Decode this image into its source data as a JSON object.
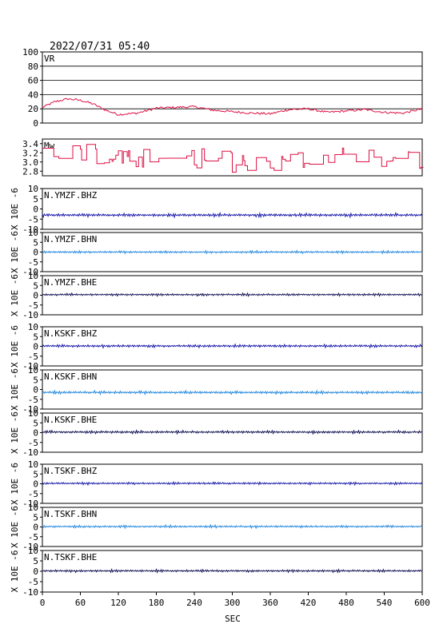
{
  "header": {
    "timestamp": "2022/07/31 05:40"
  },
  "chart_data": {
    "type": "line",
    "x_axis": {
      "label": "SEC",
      "range": [
        0,
        600
      ],
      "ticks": [
        0,
        60,
        120,
        180,
        240,
        300,
        360,
        420,
        480,
        540,
        600
      ]
    },
    "colors": {
      "frame": "#000000",
      "vr_trace": "#dd1144",
      "mw_trace": "#dd1144",
      "bhz": "#1a1aaa",
      "bhn": "#2288dd",
      "bhe": "#111155"
    },
    "panels": [
      {
        "name": "VR",
        "label": "VR",
        "ylim": [
          0,
          100
        ],
        "ticks": [
          "100",
          "80",
          "60",
          "40",
          "20",
          "0"
        ],
        "tick_values": [
          100,
          80,
          60,
          40,
          20,
          0
        ],
        "grid": true,
        "trace": "vr",
        "color": "#dd1144",
        "series": {
          "x": [
            0,
            20,
            40,
            60,
            80,
            100,
            120,
            150,
            180,
            210,
            240,
            270,
            300,
            330,
            360,
            390,
            420,
            450,
            480,
            510,
            540,
            570,
            600
          ],
          "y": [
            22,
            30,
            34,
            32,
            27,
            18,
            12,
            14,
            21,
            22,
            23,
            18,
            16,
            14,
            13,
            19,
            20,
            15,
            17,
            19,
            15,
            14,
            20
          ]
        }
      },
      {
        "name": "Mw",
        "label": "Mw",
        "ylim": [
          2.7,
          3.5
        ],
        "ticks": [
          "3.4",
          "3.2",
          "3.0",
          "2.8"
        ],
        "tick_values": [
          3.4,
          3.2,
          3.0,
          2.8
        ],
        "grid": false,
        "trace": "mw",
        "color": "#dd1144",
        "series": {
          "x": [
            0,
            60,
            120,
            180,
            240,
            300,
            360,
            420,
            480,
            540,
            600
          ],
          "y": [
            3.3,
            3.2,
            3.15,
            3.05,
            3.1,
            3.0,
            2.95,
            3.05,
            3.1,
            3.0,
            3.05
          ]
        }
      },
      {
        "name": "N.YMZF.BHZ",
        "label": "N.YMZF.BHZ",
        "ylim": [
          -10,
          10
        ],
        "ticks": [
          "10",
          "5",
          "0",
          "-5",
          "-10"
        ],
        "tick_values": [
          10,
          5,
          0,
          -5,
          -10
        ],
        "offset": -3,
        "amp": 0.7,
        "color": "#1a1aaa",
        "trace": "seis",
        "ylabel": "X 10E -6"
      },
      {
        "name": "N.YMZF.BHN",
        "label": "N.YMZF.BHN",
        "ylim": [
          -10,
          10
        ],
        "ticks": [
          "10",
          "5",
          "0",
          "-5",
          "-10"
        ],
        "tick_values": [
          10,
          5,
          0,
          -5,
          -10
        ],
        "offset": 0,
        "amp": 0.5,
        "color": "#2288dd",
        "trace": "seis",
        "ylabel": "X 10E -6"
      },
      {
        "name": "N.YMZF.BHE",
        "label": "N.YMZF.BHE",
        "ylim": [
          -10,
          10
        ],
        "ticks": [
          "10",
          "5",
          "0",
          "-5",
          "-10"
        ],
        "tick_values": [
          10,
          5,
          0,
          -5,
          -10
        ],
        "offset": 0.3,
        "amp": 0.5,
        "color": "#111155",
        "trace": "seis",
        "ylabel": "X 10E -6"
      },
      {
        "name": "N.KSKF.BHZ",
        "label": "N.KSKF.BHZ",
        "ylim": [
          -10,
          10
        ],
        "ticks": [
          "10",
          "5",
          "0",
          "-5",
          "-10"
        ],
        "tick_values": [
          10,
          5,
          0,
          -5,
          -10
        ],
        "offset": 0.2,
        "amp": 0.6,
        "color": "#1a1aaa",
        "trace": "seis",
        "ylabel": "X 10E -6"
      },
      {
        "name": "N.KSKF.BHN",
        "label": "N.KSKF.BHN",
        "ylim": [
          -10,
          10
        ],
        "ticks": [
          "10",
          "5",
          "0",
          "-5",
          "-10"
        ],
        "tick_values": [
          10,
          5,
          0,
          -5,
          -10
        ],
        "offset": -1.5,
        "amp": 0.6,
        "color": "#2288dd",
        "trace": "seis",
        "ylabel": "X 10E -6"
      },
      {
        "name": "N.KSKF.BHE",
        "label": "N.KSKF.BHE",
        "ylim": [
          -10,
          10
        ],
        "ticks": [
          "10",
          "5",
          "0",
          "-5",
          "-10"
        ],
        "tick_values": [
          10,
          5,
          0,
          -5,
          -10
        ],
        "offset": 0.3,
        "amp": 0.6,
        "color": "#111155",
        "trace": "seis",
        "ylabel": "X 10E -6"
      },
      {
        "name": "N.TSKF.BHZ",
        "label": "N.TSKF.BHZ",
        "ylim": [
          -10,
          10
        ],
        "ticks": [
          "10",
          "5",
          "0",
          "-5",
          "-10"
        ],
        "tick_values": [
          10,
          5,
          0,
          -5,
          -10
        ],
        "offset": 0.2,
        "amp": 0.5,
        "color": "#1a1aaa",
        "trace": "seis",
        "ylabel": "X 10E -6"
      },
      {
        "name": "N.TSKF.BHN",
        "label": "N.TSKF.BHN",
        "ylim": [
          -10,
          10
        ],
        "ticks": [
          "10",
          "5",
          "0",
          "-5",
          "-10"
        ],
        "tick_values": [
          10,
          5,
          0,
          -5,
          -10
        ],
        "offset": 0.2,
        "amp": 0.5,
        "color": "#2288dd",
        "trace": "seis",
        "ylabel": "X 10E -6"
      },
      {
        "name": "N.TSKF.BHE",
        "label": "N.TSKF.BHE",
        "ylim": [
          -10,
          10
        ],
        "ticks": [
          "10",
          "5",
          "0",
          "-5",
          "-10"
        ],
        "tick_values": [
          10,
          5,
          0,
          -5,
          -10
        ],
        "offset": 0.2,
        "amp": 0.5,
        "color": "#111155",
        "trace": "seis",
        "ylabel": "X 10E -6"
      }
    ]
  }
}
